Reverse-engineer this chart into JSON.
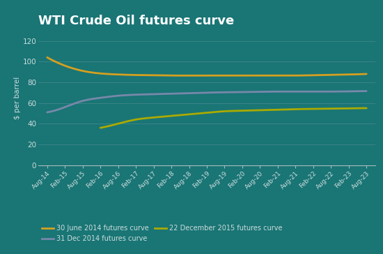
{
  "title": "WTI Crude Oil futures curve",
  "ylabel": "$ per barrel",
  "background_color": "#1a7575",
  "plot_bg_color": "#1a7575",
  "title_color": "#ffffff",
  "label_color": "#ccdddd",
  "tick_color": "#ccdddd",
  "x_labels": [
    "Aug-14",
    "Feb-15",
    "Aug-15",
    "Feb-16",
    "Aug-16",
    "Feb-17",
    "Aug-17",
    "Feb-18",
    "Aug-18",
    "Feb-19",
    "Aug-19",
    "Feb-20",
    "Aug-20",
    "Feb-21",
    "Aug-21",
    "Feb-22",
    "Aug-22",
    "Feb-23",
    "Aug-23"
  ],
  "series": [
    {
      "name": "30 June 2014 futures curve",
      "color": "#d4a020",
      "values": [
        104,
        96,
        91,
        88.5,
        87.5,
        87.0,
        86.8,
        86.5,
        86.5,
        86.5,
        86.5,
        86.5,
        86.5,
        86.5,
        86.5,
        86.8,
        87.2,
        87.5,
        88.0
      ]
    },
    {
      "name": "31 Dec 2014 futures curve",
      "color": "#7788aa",
      "values": [
        51,
        56,
        62,
        65,
        67,
        68,
        68.5,
        69,
        69.5,
        70,
        70.3,
        70.5,
        70.8,
        71.0,
        71.0,
        71.0,
        71.0,
        71.2,
        71.5
      ]
    },
    {
      "name": "22 December 2015 futures curve",
      "color": "#aaaa00",
      "values": [
        null,
        null,
        null,
        36,
        40,
        44,
        46,
        47.5,
        49,
        50.5,
        52,
        52.5,
        53,
        53.5,
        54,
        54.3,
        54.5,
        54.8,
        55.0
      ]
    }
  ],
  "ylim": [
    0,
    130
  ],
  "yticks": [
    0,
    20,
    40,
    60,
    80,
    100,
    120
  ],
  "linewidth": 2.0
}
